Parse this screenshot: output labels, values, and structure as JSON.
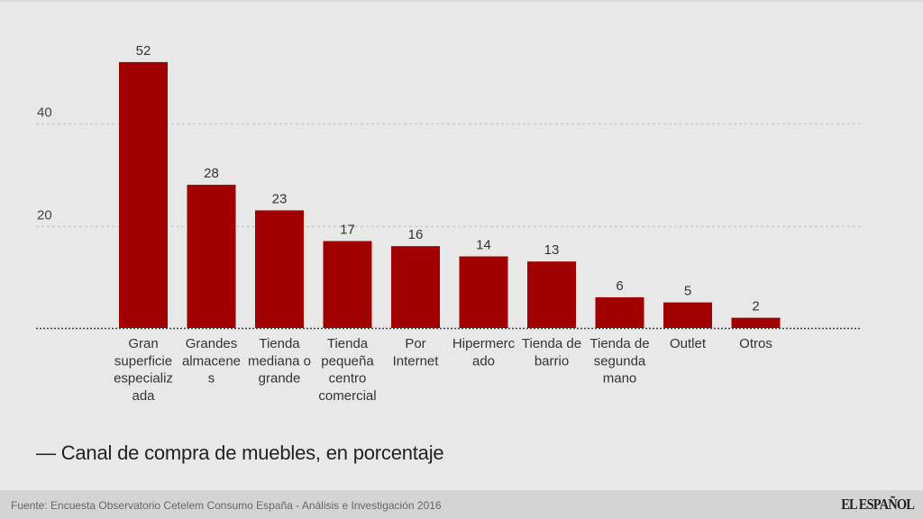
{
  "chart_data": {
    "type": "bar",
    "title": "— Canal de compra de muebles, en porcentaje",
    "xlabel": "",
    "ylabel": "",
    "ylim": [
      0,
      55
    ],
    "yticks": [
      20,
      40
    ],
    "grid": true,
    "bar_color": "#a00000",
    "categories": [
      [
        "Gran",
        "superficie",
        "especializ",
        "ada"
      ],
      [
        "Grandes",
        "almacene",
        "s"
      ],
      [
        "Tienda",
        "mediana o",
        "grande"
      ],
      [
        "Tienda",
        "pequeña",
        "centro",
        "comercial"
      ],
      [
        "Por",
        "Internet"
      ],
      [
        "Hipermerc",
        "ado"
      ],
      [
        "Tienda de",
        "barrio"
      ],
      [
        "Tienda de",
        "segunda",
        "mano"
      ],
      [
        "Outlet"
      ],
      [
        "Otros"
      ]
    ],
    "category_names": [
      "Gran superficie especializada",
      "Grandes almacenes",
      "Tienda mediana o grande",
      "Tienda pequeña centro comercial",
      "Por Internet",
      "Hipermercado",
      "Tienda de barrio",
      "Tienda de segunda mano",
      "Outlet",
      "Otros"
    ],
    "values": [
      52,
      28,
      23,
      17,
      16,
      14,
      13,
      6,
      5,
      2
    ]
  },
  "footer": {
    "source": "Fuente: Encuesta Observatorio Cetelem Consumo España - Análisis e Investigación 2016",
    "logo": "EL ESPAÑOL"
  }
}
